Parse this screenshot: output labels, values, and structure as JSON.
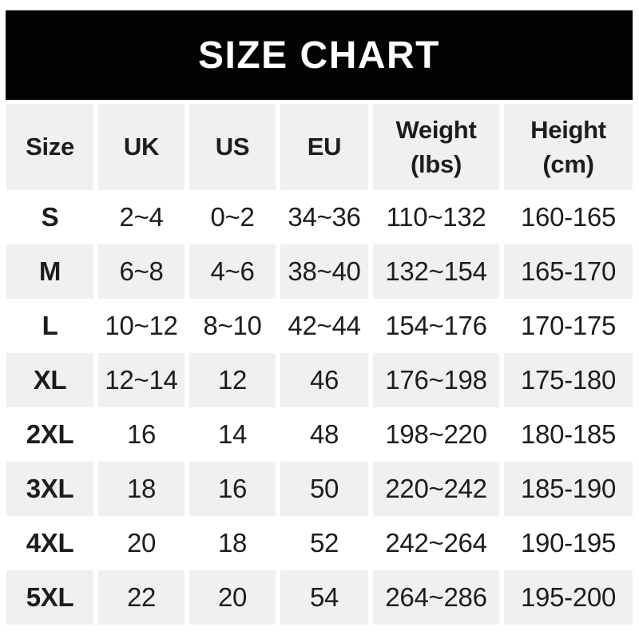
{
  "banner": {
    "title": "SIZE CHART"
  },
  "colors": {
    "banner_bg": "#030303",
    "banner_text": "#ffffff",
    "stripe_bg": "#f0f0f1",
    "row_bg": "#ffffff",
    "text": "#1d1d1f"
  },
  "chart_data": {
    "type": "table",
    "title": "SIZE CHART",
    "columns": [
      "Size",
      "UK",
      "US",
      "EU",
      "Weight (lbs)",
      "Height (cm)"
    ],
    "rows": [
      [
        "S",
        "2~4",
        "0~2",
        "34~36",
        "110~132",
        "160-165"
      ],
      [
        "M",
        "6~8",
        "4~6",
        "38~40",
        "132~154",
        "165-170"
      ],
      [
        "L",
        "10~12",
        "8~10",
        "42~44",
        "154~176",
        "170-175"
      ],
      [
        "XL",
        "12~14",
        "12",
        "46",
        "176~198",
        "175-180"
      ],
      [
        "2XL",
        "16",
        "14",
        "48",
        "198~220",
        "180-185"
      ],
      [
        "3XL",
        "18",
        "16",
        "50",
        "220~242",
        "185-190"
      ],
      [
        "4XL",
        "20",
        "18",
        "52",
        "242~264",
        "190-195"
      ],
      [
        "5XL",
        "22",
        "20",
        "54",
        "264~286",
        "195-200"
      ]
    ],
    "layout": {
      "striped_rows": [
        "M",
        "XL",
        "3XL",
        "5XL"
      ],
      "weight_range_separator": "~",
      "height_range_separator": "-"
    }
  }
}
